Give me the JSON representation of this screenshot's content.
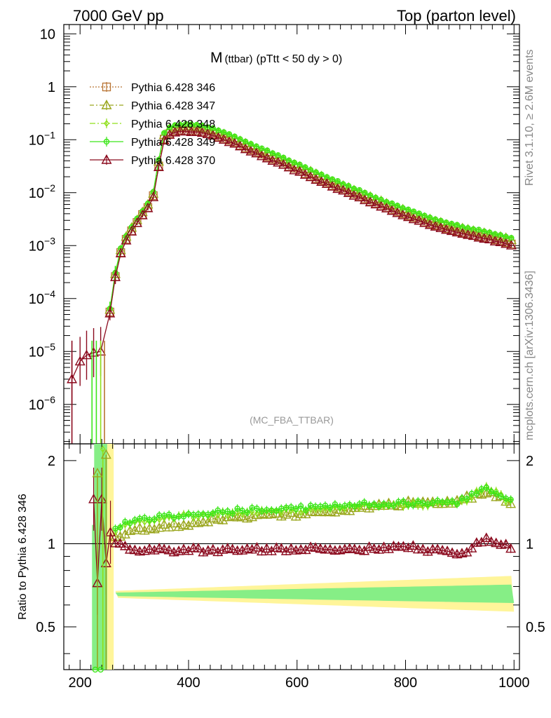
{
  "header": {
    "left": "7000 GeV pp",
    "right": "Top (parton level)"
  },
  "side": {
    "rivet": "Rivet 3.1.10, ≥ 2.6M events",
    "mcplots": "mcplots.cern.ch [arXiv:1306.3436]"
  },
  "chart_data": {
    "type": "line",
    "title": {
      "main": "M",
      "sub": "(ttbar)",
      "rest": "(pTtt < 50 dy > 0)"
    },
    "watermark": "(MC_FBA_TTBAR)",
    "xlim": [
      170,
      1010
    ],
    "x_ticks": [
      200,
      400,
      600,
      800,
      1000
    ],
    "x_tick_labels": [
      "200",
      "400",
      "600",
      "800",
      "1000"
    ],
    "main_panel": {
      "yscale": "log",
      "ylim": [
        1.8e-07,
        15
      ],
      "y_ticks": [
        1e-06,
        1e-05,
        0.0001,
        0.001,
        0.01,
        0.1,
        1,
        10
      ],
      "y_tick_labels": [
        {
          "base": "10",
          "exp": "−6"
        },
        {
          "base": "10",
          "exp": "−5"
        },
        {
          "base": "10",
          "exp": "−4"
        },
        {
          "base": "10",
          "exp": "−3"
        },
        {
          "base": "10",
          "exp": "−2"
        },
        {
          "base": "10",
          "exp": "−1"
        },
        {
          "base": "1",
          "exp": ""
        },
        {
          "base": "10",
          "exp": ""
        }
      ],
      "reference_points": [
        [
          230,
          7e-06
        ],
        [
          250,
          2.3e-05
        ],
        [
          260,
          0.00013
        ],
        [
          270,
          0.00052
        ],
        [
          280,
          0.00105
        ],
        [
          290,
          0.0016
        ],
        [
          300,
          0.0023
        ],
        [
          310,
          0.0032
        ],
        [
          320,
          0.0045
        ],
        [
          330,
          0.0062
        ],
        [
          340,
          0.012
        ],
        [
          350,
          0.085
        ],
        [
          360,
          0.125
        ],
        [
          370,
          0.14
        ],
        [
          380,
          0.148
        ],
        [
          390,
          0.15
        ],
        [
          400,
          0.15
        ],
        [
          420,
          0.145
        ],
        [
          440,
          0.13
        ],
        [
          460,
          0.11
        ],
        [
          480,
          0.092
        ],
        [
          500,
          0.075
        ],
        [
          550,
          0.045
        ],
        [
          600,
          0.027
        ],
        [
          650,
          0.016
        ],
        [
          700,
          0.0098
        ],
        [
          750,
          0.006
        ],
        [
          800,
          0.0038
        ],
        [
          850,
          0.0025
        ],
        [
          900,
          0.0018
        ],
        [
          950,
          0.0014
        ],
        [
          1000,
          0.00105
        ]
      ],
      "low_mass_points": [
        [
          185,
          3e-06
        ],
        [
          200,
          6.5e-06
        ],
        [
          212,
          8.5e-06
        ],
        [
          225,
          9.5e-06
        ],
        [
          238,
          1e-05
        ]
      ]
    },
    "ratio_panel": {
      "ylabel": "Ratio to Pythia 6.428 346",
      "ylim": [
        0.35,
        2.3
      ],
      "y_ticks": [
        0.5,
        1,
        2
      ],
      "y_tick_labels": [
        "0.5",
        "1",
        "2"
      ],
      "ratio_346": [
        [
          225,
          1.0
        ],
        [
          260,
          1.0
        ],
        [
          1000,
          1.0
        ]
      ],
      "ratio_347": [
        [
          265,
          1.05
        ],
        [
          300,
          1.12
        ],
        [
          400,
          1.18
        ],
        [
          500,
          1.25
        ],
        [
          600,
          1.28
        ],
        [
          700,
          1.33
        ],
        [
          800,
          1.4
        ],
        [
          900,
          1.43
        ],
        [
          950,
          1.55
        ],
        [
          1000,
          1.38
        ]
      ],
      "ratio_348": [
        [
          265,
          1.12
        ],
        [
          300,
          1.2
        ],
        [
          400,
          1.26
        ],
        [
          500,
          1.3
        ],
        [
          600,
          1.32
        ],
        [
          700,
          1.37
        ],
        [
          800,
          1.38
        ],
        [
          900,
          1.4
        ],
        [
          950,
          1.6
        ],
        [
          1000,
          1.38
        ]
      ],
      "ratio_349": [
        [
          265,
          1.15
        ],
        [
          300,
          1.22
        ],
        [
          400,
          1.28
        ],
        [
          500,
          1.32
        ],
        [
          600,
          1.34
        ],
        [
          700,
          1.38
        ],
        [
          800,
          1.4
        ],
        [
          900,
          1.42
        ],
        [
          950,
          1.58
        ],
        [
          1000,
          1.4
        ]
      ],
      "ratio_370": [
        [
          265,
          1.0
        ],
        [
          300,
          0.95
        ],
        [
          400,
          0.95
        ],
        [
          500,
          0.95
        ],
        [
          600,
          0.96
        ],
        [
          700,
          0.95
        ],
        [
          800,
          0.97
        ],
        [
          850,
          0.95
        ],
        [
          900,
          0.91
        ],
        [
          950,
          1.05
        ],
        [
          1000,
          0.96
        ]
      ],
      "ratio_370_low": [
        [
          225,
          1.45
        ],
        [
          232,
          0.72
        ],
        [
          240,
          1.45
        ],
        [
          248,
          0.85
        ],
        [
          256,
          1.1
        ]
      ]
    },
    "series": [
      {
        "name": "Pythia 6.428 346",
        "color": "#b87333",
        "marker": "square",
        "dash": "2,2"
      },
      {
        "name": "Pythia 6.428 347",
        "color": "#9aa61e",
        "marker": "triangle",
        "dash": "6,3,2,3"
      },
      {
        "name": "Pythia 6.428 348",
        "color": "#8fe01a",
        "marker": "diamond",
        "dash": "8,3,2,3"
      },
      {
        "name": "Pythia 6.428 349",
        "color": "#3ce61a",
        "marker": "circle",
        "dash": ""
      },
      {
        "name": "Pythia 6.428 370",
        "color": "#8b0a1e",
        "marker": "triangle",
        "dash": ""
      }
    ],
    "colors": {
      "band_yellow": "#fff59a",
      "band_green": "#86ee86"
    }
  }
}
